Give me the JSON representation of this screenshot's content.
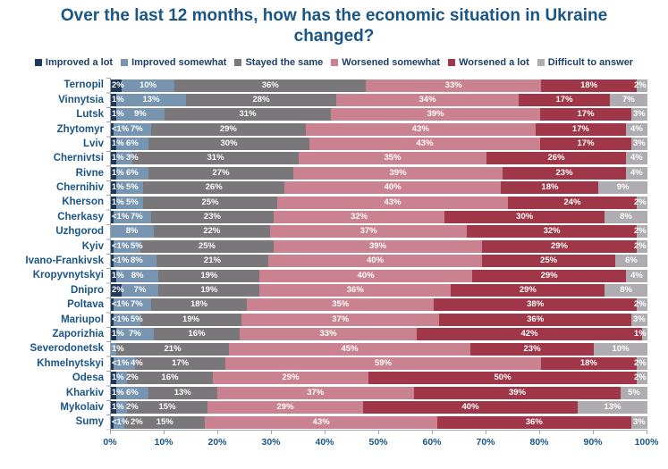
{
  "title": "Over the last 12 months, how has the economic situation in Ukraine changed?",
  "colors": {
    "title_text": "#1a5586",
    "axis_text": "#1a5586",
    "bar_label_text": "#ffffff"
  },
  "chart_data": {
    "type": "bar",
    "orientation": "horizontal",
    "stacked": true,
    "title": "Over the last 12 months, how has the economic situation in Ukraine changed?",
    "xlabel": "",
    "ylabel": "",
    "xlim": [
      0,
      100
    ],
    "grid": false,
    "legend_position": "top",
    "x_ticks": [
      "0%",
      "10%",
      "20%",
      "30%",
      "40%",
      "50%",
      "60%",
      "70%",
      "80%",
      "90%",
      "100%"
    ],
    "legend": [
      {
        "label": "Improved a lot",
        "color": "#20395b"
      },
      {
        "label": "Improved somewhat",
        "color": "#7795b0"
      },
      {
        "label": "Stayed the same",
        "color": "#7a777b"
      },
      {
        "label": "Worsened somewhat",
        "color": "#cb8290"
      },
      {
        "label": "Worsened a lot",
        "color": "#a03748"
      },
      {
        "label": "Difficult to answer",
        "color": "#afacb1"
      }
    ],
    "categories": [
      "Ternopil",
      "Vinnytsia",
      "Lutsk",
      "Zhytomyr",
      "Lviv",
      "Chernivtsi",
      "Rivne",
      "Chernihiv",
      "Kherson",
      "Cherkasy",
      "Uzhgorod",
      "Kyiv",
      "Ivano-Frankivsk",
      "Kropyvnytskyi",
      "Dnipro",
      "Poltava",
      "Mariupol",
      "Zaporizhia",
      "Severodonetsk",
      "Khmelnytskyi",
      "Odesa",
      "Kharkiv",
      "Mykolaiv",
      "Sumy"
    ],
    "rows": [
      {
        "city": "Ternopil",
        "values": [
          2,
          10,
          36,
          33,
          18,
          2
        ],
        "labels": [
          "2%",
          "10%",
          "36%",
          "33%",
          "18%",
          "2%"
        ]
      },
      {
        "city": "Vinnytsia",
        "values": [
          1,
          13,
          28,
          34,
          17,
          7
        ],
        "labels": [
          "1%",
          "13%",
          "28%",
          "34%",
          "17%",
          "7%"
        ]
      },
      {
        "city": "Lutsk",
        "values": [
          1,
          9,
          31,
          39,
          17,
          3
        ],
        "labels": [
          "1%",
          "9%",
          "31%",
          "39%",
          "17%",
          "3%"
        ]
      },
      {
        "city": "Zhytomyr",
        "values": [
          0.5,
          7,
          29,
          43,
          17,
          4
        ],
        "labels": [
          "<1%",
          "7%",
          "29%",
          "43%",
          "17%",
          "4%"
        ]
      },
      {
        "city": "Lviv",
        "values": [
          1,
          6,
          30,
          43,
          17,
          3
        ],
        "labels": [
          "1%",
          "6%",
          "30%",
          "43%",
          "17%",
          "3%"
        ]
      },
      {
        "city": "Chernivtsi",
        "values": [
          1,
          3,
          31,
          35,
          26,
          4
        ],
        "labels": [
          "1%",
          "3%",
          "31%",
          "35%",
          "26%",
          "4%"
        ]
      },
      {
        "city": "Rivne",
        "values": [
          1,
          6,
          27,
          39,
          23,
          4
        ],
        "labels": [
          "1%",
          "6%",
          "27%",
          "39%",
          "23%",
          "4%"
        ]
      },
      {
        "city": "Chernihiv",
        "values": [
          1,
          5,
          26,
          40,
          18,
          9
        ],
        "labels": [
          "1%",
          "5%",
          "26%",
          "40%",
          "18%",
          "9%"
        ]
      },
      {
        "city": "Kherson",
        "values": [
          1,
          5,
          25,
          43,
          24,
          2
        ],
        "labels": [
          "1%",
          "5%",
          "25%",
          "43%",
          "24%",
          "2%"
        ]
      },
      {
        "city": "Cherkasy",
        "values": [
          0.5,
          7,
          23,
          32,
          30,
          8
        ],
        "labels": [
          "<1%",
          "7%",
          "23%",
          "32%",
          "30%",
          "8%"
        ]
      },
      {
        "city": "Uzhgorod",
        "values": [
          0,
          8,
          22,
          37,
          32,
          2
        ],
        "labels": [
          "",
          "8%",
          "22%",
          "37%",
          "32%",
          "2%"
        ]
      },
      {
        "city": "Kyiv",
        "values": [
          0.5,
          5,
          25,
          39,
          29,
          2
        ],
        "labels": [
          "<1%",
          "5%",
          "25%",
          "39%",
          "29%",
          "2%"
        ]
      },
      {
        "city": "Ivano-Frankivsk",
        "values": [
          0.5,
          8,
          21,
          40,
          25,
          6
        ],
        "labels": [
          "<1%",
          "8%",
          "21%",
          "40%",
          "25%",
          "6%"
        ]
      },
      {
        "city": "Kropyvnytskyi",
        "values": [
          1,
          8,
          19,
          40,
          29,
          4
        ],
        "labels": [
          "1%",
          "8%",
          "19%",
          "40%",
          "29%",
          "4%"
        ]
      },
      {
        "city": "Dnipro",
        "values": [
          2,
          7,
          19,
          36,
          29,
          8
        ],
        "labels": [
          "2%",
          "7%",
          "19%",
          "36%",
          "29%",
          "8%"
        ]
      },
      {
        "city": "Poltava",
        "values": [
          0.5,
          7,
          18,
          35,
          38,
          2
        ],
        "labels": [
          "<1%",
          "7%",
          "18%",
          "35%",
          "38%",
          "2%"
        ]
      },
      {
        "city": "Mariupol",
        "values": [
          0.5,
          5,
          19,
          37,
          36,
          3
        ],
        "labels": [
          "<1%",
          "5%",
          "19%",
          "37%",
          "36%",
          "3%"
        ]
      },
      {
        "city": "Zaporizhia",
        "values": [
          1,
          7,
          16,
          33,
          42,
          1
        ],
        "labels": [
          "1%",
          "7%",
          "16%",
          "33%",
          "42%",
          "1%"
        ]
      },
      {
        "city": "Severodonetsk",
        "values": [
          0,
          1,
          21,
          45,
          23,
          10
        ],
        "labels": [
          "",
          "1%",
          "21%",
          "45%",
          "23%",
          "10%"
        ]
      },
      {
        "city": "Khmelnytskyi",
        "values": [
          0.5,
          4,
          17,
          59,
          18,
          2
        ],
        "labels": [
          "<1%",
          "4%",
          "17%",
          "59%",
          "18%",
          "2%"
        ]
      },
      {
        "city": "Odesa",
        "values": [
          1,
          2,
          16,
          29,
          50,
          2
        ],
        "labels": [
          "1%",
          "2%",
          "16%",
          "29%",
          "50%",
          "2%"
        ]
      },
      {
        "city": "Kharkiv",
        "values": [
          1,
          6,
          13,
          37,
          39,
          5
        ],
        "labels": [
          "1%",
          "6%",
          "13%",
          "37%",
          "39%",
          "5%"
        ]
      },
      {
        "city": "Mykolaiv",
        "values": [
          1,
          2,
          15,
          29,
          40,
          13
        ],
        "labels": [
          "1%",
          "2%",
          "15%",
          "29%",
          "40%",
          "13%"
        ]
      },
      {
        "city": "Sumy",
        "values": [
          0.5,
          2,
          15,
          43,
          36,
          3
        ],
        "labels": [
          "<1%",
          "2%",
          "15%",
          "43%",
          "36%",
          "3%"
        ]
      }
    ]
  }
}
